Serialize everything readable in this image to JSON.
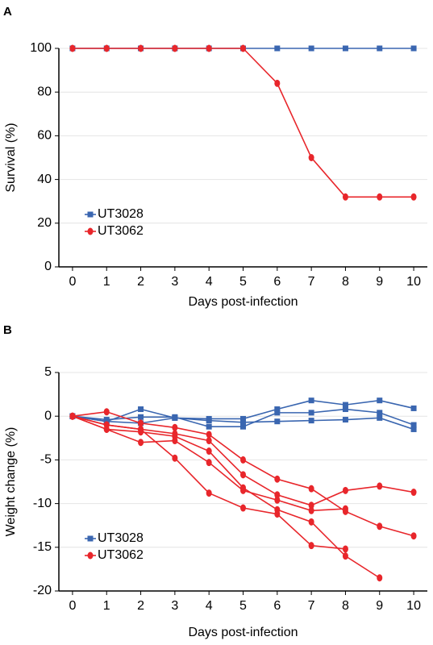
{
  "chart_data": [
    {
      "type": "line",
      "panel_label": "A",
      "xlabel": "Days post-infection",
      "ylabel": "Survival (%)",
      "x": [
        0,
        1,
        2,
        3,
        4,
        5,
        6,
        7,
        8,
        9,
        10
      ],
      "xlim": [
        -0.4,
        10.4
      ],
      "xticks": [
        0,
        1,
        2,
        3,
        4,
        5,
        6,
        7,
        8,
        9,
        10
      ],
      "ylim": [
        0,
        100
      ],
      "yticks": [
        0,
        20,
        40,
        60,
        80,
        100
      ],
      "grid": true,
      "legend": "lower left",
      "series": [
        {
          "name": "UT3028",
          "color": "#3a66b0",
          "marker": "square",
          "values": [
            100,
            100,
            100,
            100,
            100,
            100,
            100,
            100,
            100,
            100,
            100
          ]
        },
        {
          "name": "UT3062",
          "color": "#e8262b",
          "marker": "circle",
          "values": [
            100,
            100,
            100,
            100,
            100,
            100,
            84,
            50,
            32,
            32,
            32
          ]
        }
      ]
    },
    {
      "type": "line",
      "panel_label": "B",
      "xlabel": "Days post-infection",
      "ylabel": "Weight change (%)",
      "x": [
        0,
        1,
        2,
        3,
        4,
        5,
        6,
        7,
        8,
        9,
        10
      ],
      "xlim": [
        -0.4,
        10.4
      ],
      "xticks": [
        0,
        1,
        2,
        3,
        4,
        5,
        6,
        7,
        8,
        9,
        10
      ],
      "ylim": [
        -20,
        5
      ],
      "yticks": [
        -20,
        -15,
        -10,
        -5,
        0,
        5
      ],
      "grid": true,
      "legend": "lower left",
      "series": [
        {
          "name": "UT3028",
          "color": "#3a66b0",
          "marker": "square",
          "values": [
            [
              0,
              -0.6,
              0.8,
              -0.2,
              -0.3,
              -0.3,
              0.8,
              1.8,
              1.3,
              1.8,
              0.9
            ],
            [
              0,
              -0.4,
              -0.1,
              -0.1,
              -1.2,
              -1.2,
              0.4,
              0.4,
              0.8,
              0.4,
              -1.0
            ],
            [
              0,
              -0.6,
              -0.8,
              -0.2,
              -0.5,
              -0.7,
              -0.6,
              -0.5,
              -0.4,
              -0.2,
              -1.5
            ]
          ]
        },
        {
          "name": "UT3062",
          "color": "#e8262b",
          "marker": "circle",
          "values": [
            [
              0,
              0.5,
              -0.8,
              -1.3,
              -2.1,
              -5,
              -7.2,
              -8.3,
              -10.9,
              -12.6,
              -13.7
            ],
            [
              0,
              -1,
              -1.5,
              -2,
              -2.8,
              -6.7,
              -9,
              -10.2,
              -8.5,
              -8,
              -8.7
            ],
            [
              0,
              -1.5,
              -1.8,
              -2.3,
              -4,
              -8.2,
              -10.7,
              -12.1,
              -16,
              -18.5,
              null
            ],
            [
              0,
              -1,
              -1.5,
              -4.8,
              -8.8,
              -10.5,
              -11.2,
              -14.8,
              -15.2,
              null,
              null
            ],
            [
              0,
              -1.5,
              -3,
              -2.8,
              -5.3,
              -8.5,
              -9.6,
              -10.8,
              -10.6,
              null,
              null
            ]
          ]
        }
      ]
    }
  ]
}
